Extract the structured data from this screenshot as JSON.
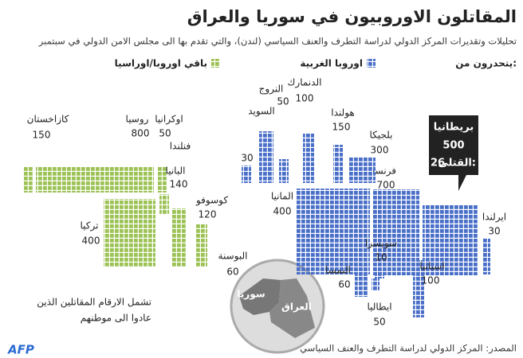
{
  "chart_data": {
    "type": "waffle",
    "title": "المقاتلون الاوروبيون في سوريا والعراق",
    "subtitle": "تحليلات وتقديرات المركز الدولي لدراسة التطرف والعنف السياسي (لندن)، والتي تقدم بها الى مجلس الامن الدولي في سبتمبر",
    "legend_title": "يتحدرون من:",
    "series": [
      {
        "name": "اوروبا الغربية",
        "color": "#4a6fc8",
        "countries": [
          {
            "name": "بريطانيا",
            "value": 500,
            "deaths_label": "القتلى:",
            "deaths": 26
          },
          {
            "name": "ايرلندا",
            "value": 30
          },
          {
            "name": "فرنسا",
            "value": 700
          },
          {
            "name": "بلجيكا",
            "value": 300
          },
          {
            "name": "هولندا",
            "value": 150
          },
          {
            "name": "الدنمارك",
            "value": 100
          },
          {
            "name": "النروج",
            "value": 50
          },
          {
            "name": "السويد",
            "value": 180,
            "value_shown": false
          },
          {
            "name": "فنلندا",
            "value": 30
          },
          {
            "name": "المانيا",
            "value": 400
          },
          {
            "name": "سويسرا",
            "value": 10
          },
          {
            "name": "النمسا",
            "value": 60
          },
          {
            "name": "ايطاليا",
            "value": 50
          },
          {
            "name": "اسبانيا",
            "value": 100
          }
        ]
      },
      {
        "name": "باقي اوروبا/اوراسيا",
        "color": "#9cc255",
        "countries": [
          {
            "name": "كازاخستان",
            "value": 150
          },
          {
            "name": "روسيا",
            "value": 800
          },
          {
            "name": "اوكرانيا",
            "value": 50
          },
          {
            "name": "البانيا",
            "value": 140
          },
          {
            "name": "كوسوفو",
            "value": 120
          },
          {
            "name": "تركيا",
            "value": 400
          },
          {
            "name": "البوسنة",
            "value": 60
          }
        ]
      }
    ],
    "note": [
      "تشمل الارقام المقاتلين الذين",
      "عادوا الى موطنهم"
    ],
    "map_labels": [
      "سوريا",
      "العراق"
    ],
    "source": "المصدر: المركز الدولي لدراسة التطرف والعنف السياسي",
    "logo": "AFP"
  }
}
